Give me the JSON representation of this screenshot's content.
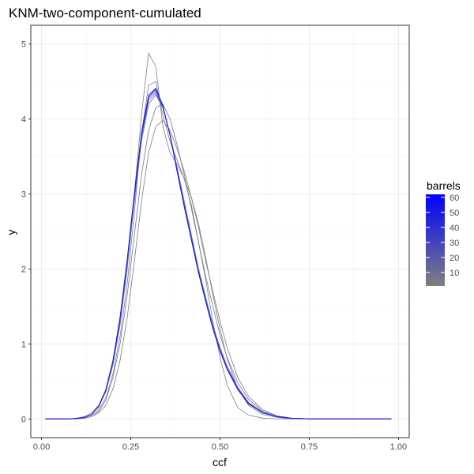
{
  "chart_data": {
    "type": "line",
    "title": "KNM-two-component-cumulated",
    "xlabel": "ccf",
    "ylabel": "y",
    "xlim": [
      -0.03,
      1.03
    ],
    "ylim": [
      -0.25,
      5.25
    ],
    "x_ticks": [
      0,
      0.25,
      0.5,
      0.75,
      1
    ],
    "x_tick_labels": [
      "0.00",
      "0.25",
      "0.50",
      "0.75",
      "1.00"
    ],
    "y_ticks": [
      0,
      1,
      2,
      3,
      4,
      5
    ],
    "y_tick_labels": [
      "0",
      "1",
      "2",
      "3",
      "4",
      "5"
    ],
    "grid": true,
    "legend": {
      "title": "barrels",
      "placement": "right",
      "type": "colorbar",
      "range": [
        1,
        62
      ],
      "low_color": "#808080",
      "high_color": "#0000ff",
      "ticks": [
        10,
        20,
        30,
        40,
        50,
        60
      ],
      "tick_labels": [
        "10",
        "20",
        "30",
        "40",
        "50",
        "60"
      ]
    },
    "series": [
      {
        "barrels": 1,
        "color": "#808080",
        "x": [
          0.01,
          0.08,
          0.1,
          0.12,
          0.14,
          0.16,
          0.18,
          0.2,
          0.22,
          0.24,
          0.26,
          0.28,
          0.3,
          0.32,
          0.34,
          0.36,
          0.38,
          0.4,
          0.42,
          0.44,
          0.46,
          0.48,
          0.5,
          0.52,
          0.55,
          0.58,
          0.62,
          0.66,
          0.7,
          0.75,
          0.85,
          0.98
        ],
        "y": [
          0,
          0,
          0.01,
          0.03,
          0.08,
          0.18,
          0.38,
          0.72,
          1.25,
          2.0,
          3.0,
          4.05,
          4.88,
          4.7,
          3.9,
          3.55,
          3.4,
          3.2,
          2.85,
          2.35,
          1.85,
          1.3,
          0.82,
          0.45,
          0.15,
          0.05,
          0.01,
          0,
          0,
          0,
          0,
          0
        ]
      },
      {
        "barrels": 2,
        "color": "#7e7e83",
        "x": [
          0.01,
          0.08,
          0.1,
          0.12,
          0.14,
          0.16,
          0.18,
          0.2,
          0.22,
          0.24,
          0.26,
          0.28,
          0.3,
          0.32,
          0.34,
          0.36,
          0.38,
          0.4,
          0.42,
          0.44,
          0.46,
          0.48,
          0.5,
          0.52,
          0.55,
          0.58,
          0.62,
          0.66,
          0.7,
          0.75,
          0.85,
          0.98
        ],
        "y": [
          0,
          0,
          0.01,
          0.02,
          0.05,
          0.12,
          0.28,
          0.6,
          1.1,
          1.8,
          2.75,
          3.8,
          4.45,
          4.5,
          4.05,
          3.7,
          3.45,
          3.2,
          2.95,
          2.6,
          2.15,
          1.65,
          1.2,
          0.8,
          0.4,
          0.18,
          0.06,
          0.02,
          0,
          0,
          0,
          0
        ]
      },
      {
        "barrels": 5,
        "color": "#7a7a8b",
        "x": [
          0.01,
          0.08,
          0.1,
          0.12,
          0.14,
          0.16,
          0.18,
          0.2,
          0.22,
          0.24,
          0.26,
          0.28,
          0.3,
          0.32,
          0.34,
          0.36,
          0.38,
          0.4,
          0.42,
          0.44,
          0.46,
          0.48,
          0.5,
          0.52,
          0.55,
          0.58,
          0.62,
          0.66,
          0.7,
          0.75,
          0.85,
          0.98
        ],
        "y": [
          0,
          0,
          0,
          0.01,
          0.03,
          0.08,
          0.18,
          0.4,
          0.78,
          1.35,
          2.1,
          2.9,
          3.55,
          3.9,
          3.98,
          3.85,
          3.6,
          3.3,
          2.95,
          2.55,
          2.1,
          1.7,
          1.3,
          0.95,
          0.55,
          0.3,
          0.12,
          0.04,
          0.01,
          0,
          0,
          0
        ]
      },
      {
        "barrels": 10,
        "color": "#747496",
        "x": [
          0.01,
          0.08,
          0.1,
          0.12,
          0.14,
          0.16,
          0.18,
          0.2,
          0.22,
          0.24,
          0.26,
          0.28,
          0.3,
          0.32,
          0.34,
          0.36,
          0.38,
          0.4,
          0.42,
          0.44,
          0.46,
          0.48,
          0.5,
          0.52,
          0.55,
          0.58,
          0.62,
          0.66,
          0.7,
          0.75,
          0.85,
          0.98
        ],
        "y": [
          0,
          0,
          0,
          0.01,
          0.03,
          0.1,
          0.25,
          0.55,
          1.0,
          1.65,
          2.45,
          3.25,
          3.85,
          4.15,
          4.2,
          4.0,
          3.65,
          3.25,
          2.8,
          2.35,
          1.9,
          1.5,
          1.12,
          0.82,
          0.48,
          0.26,
          0.1,
          0.04,
          0.01,
          0,
          0,
          0
        ]
      },
      {
        "barrels": 20,
        "color": "#6767ac",
        "x": [
          0.01,
          0.08,
          0.1,
          0.12,
          0.14,
          0.16,
          0.18,
          0.2,
          0.22,
          0.24,
          0.26,
          0.28,
          0.3,
          0.32,
          0.34,
          0.36,
          0.38,
          0.4,
          0.42,
          0.44,
          0.46,
          0.48,
          0.5,
          0.52,
          0.55,
          0.58,
          0.62,
          0.66,
          0.7,
          0.75,
          0.85,
          0.98
        ],
        "y": [
          0,
          0,
          0.01,
          0.02,
          0.06,
          0.16,
          0.36,
          0.72,
          1.28,
          2.02,
          2.9,
          3.7,
          4.2,
          4.32,
          4.15,
          3.8,
          3.35,
          2.9,
          2.45,
          2.0,
          1.62,
          1.25,
          0.95,
          0.7,
          0.42,
          0.22,
          0.09,
          0.03,
          0.01,
          0,
          0,
          0
        ]
      },
      {
        "barrels": 30,
        "color": "#5a5ac3",
        "x": [
          0.01,
          0.08,
          0.1,
          0.12,
          0.14,
          0.16,
          0.18,
          0.2,
          0.22,
          0.24,
          0.26,
          0.28,
          0.3,
          0.32,
          0.34,
          0.36,
          0.38,
          0.4,
          0.42,
          0.44,
          0.46,
          0.48,
          0.5,
          0.52,
          0.55,
          0.58,
          0.62,
          0.66,
          0.7,
          0.75,
          0.85,
          0.98
        ],
        "y": [
          0,
          0,
          0.01,
          0.02,
          0.06,
          0.17,
          0.38,
          0.75,
          1.32,
          2.08,
          2.95,
          3.75,
          4.25,
          4.35,
          4.15,
          3.78,
          3.32,
          2.86,
          2.42,
          1.98,
          1.6,
          1.24,
          0.94,
          0.69,
          0.41,
          0.21,
          0.08,
          0.03,
          0.01,
          0,
          0,
          0
        ]
      },
      {
        "barrels": 40,
        "color": "#4040e0",
        "x": [
          0.01,
          0.08,
          0.1,
          0.12,
          0.14,
          0.16,
          0.18,
          0.2,
          0.22,
          0.24,
          0.26,
          0.28,
          0.3,
          0.32,
          0.34,
          0.36,
          0.38,
          0.4,
          0.42,
          0.44,
          0.46,
          0.48,
          0.5,
          0.52,
          0.55,
          0.58,
          0.62,
          0.66,
          0.7,
          0.75,
          0.85,
          0.98
        ],
        "y": [
          0,
          0,
          0.01,
          0.02,
          0.06,
          0.17,
          0.39,
          0.77,
          1.34,
          2.1,
          2.98,
          3.78,
          4.28,
          4.38,
          4.16,
          3.78,
          3.3,
          2.84,
          2.4,
          1.96,
          1.58,
          1.22,
          0.92,
          0.67,
          0.4,
          0.2,
          0.08,
          0.03,
          0.01,
          0,
          0,
          0
        ]
      },
      {
        "barrels": 50,
        "color": "#2a2aef",
        "x": [
          0.01,
          0.08,
          0.1,
          0.12,
          0.14,
          0.16,
          0.18,
          0.2,
          0.22,
          0.24,
          0.26,
          0.28,
          0.3,
          0.32,
          0.34,
          0.36,
          0.38,
          0.4,
          0.42,
          0.44,
          0.46,
          0.48,
          0.5,
          0.52,
          0.55,
          0.58,
          0.62,
          0.66,
          0.7,
          0.75,
          0.85,
          0.98
        ],
        "y": [
          0,
          0,
          0.01,
          0.02,
          0.06,
          0.17,
          0.39,
          0.77,
          1.35,
          2.12,
          3.0,
          3.8,
          4.3,
          4.4,
          4.17,
          3.78,
          3.3,
          2.83,
          2.39,
          1.95,
          1.57,
          1.21,
          0.91,
          0.66,
          0.39,
          0.2,
          0.08,
          0.03,
          0.01,
          0,
          0,
          0
        ]
      },
      {
        "barrels": 60,
        "color": "#1010fb",
        "x": [
          0.01,
          0.08,
          0.1,
          0.12,
          0.14,
          0.16,
          0.18,
          0.2,
          0.22,
          0.24,
          0.26,
          0.28,
          0.3,
          0.32,
          0.34,
          0.36,
          0.38,
          0.4,
          0.42,
          0.44,
          0.46,
          0.48,
          0.5,
          0.52,
          0.55,
          0.58,
          0.62,
          0.66,
          0.7,
          0.75,
          0.85,
          0.98
        ],
        "y": [
          0,
          0,
          0.01,
          0.02,
          0.06,
          0.17,
          0.39,
          0.78,
          1.36,
          2.13,
          3.01,
          3.82,
          4.32,
          4.41,
          4.18,
          3.78,
          3.29,
          2.82,
          2.38,
          1.94,
          1.56,
          1.2,
          0.9,
          0.66,
          0.39,
          0.2,
          0.08,
          0.03,
          0.01,
          0,
          0,
          0
        ]
      }
    ]
  }
}
